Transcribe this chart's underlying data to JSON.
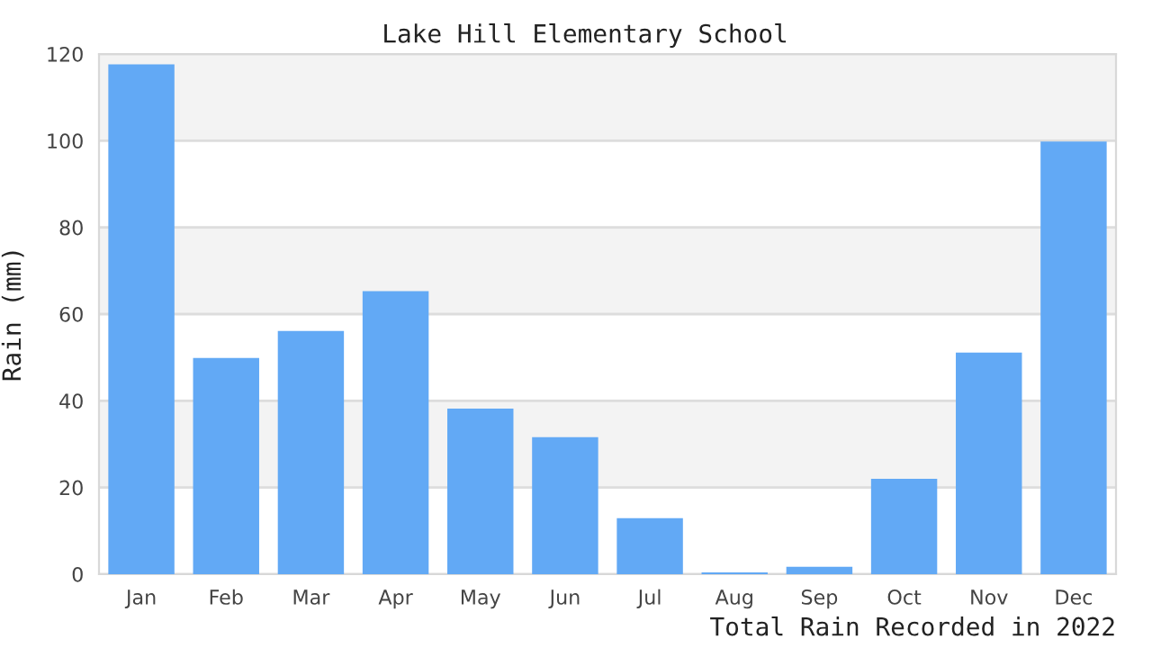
{
  "chart_data": {
    "type": "bar",
    "title": "Lake Hill Elementary School",
    "ylabel": "Rain (mm)",
    "categories": [
      "Jan",
      "Feb",
      "Mar",
      "Apr",
      "May",
      "Jun",
      "Jul",
      "Aug",
      "Sep",
      "Oct",
      "Nov",
      "Dec"
    ],
    "values": [
      117.6,
      49.9,
      56.1,
      65.3,
      38.2,
      31.6,
      12.9,
      0.4,
      1.7,
      22.0,
      51.1,
      99.8
    ],
    "color": "#62a9f5",
    "ylim": [
      0,
      120
    ],
    "yticks": [
      0,
      20,
      40,
      60,
      80,
      100,
      120
    ],
    "grid": "y",
    "annotations": [
      "Total Rain Recorded in 2022"
    ]
  }
}
